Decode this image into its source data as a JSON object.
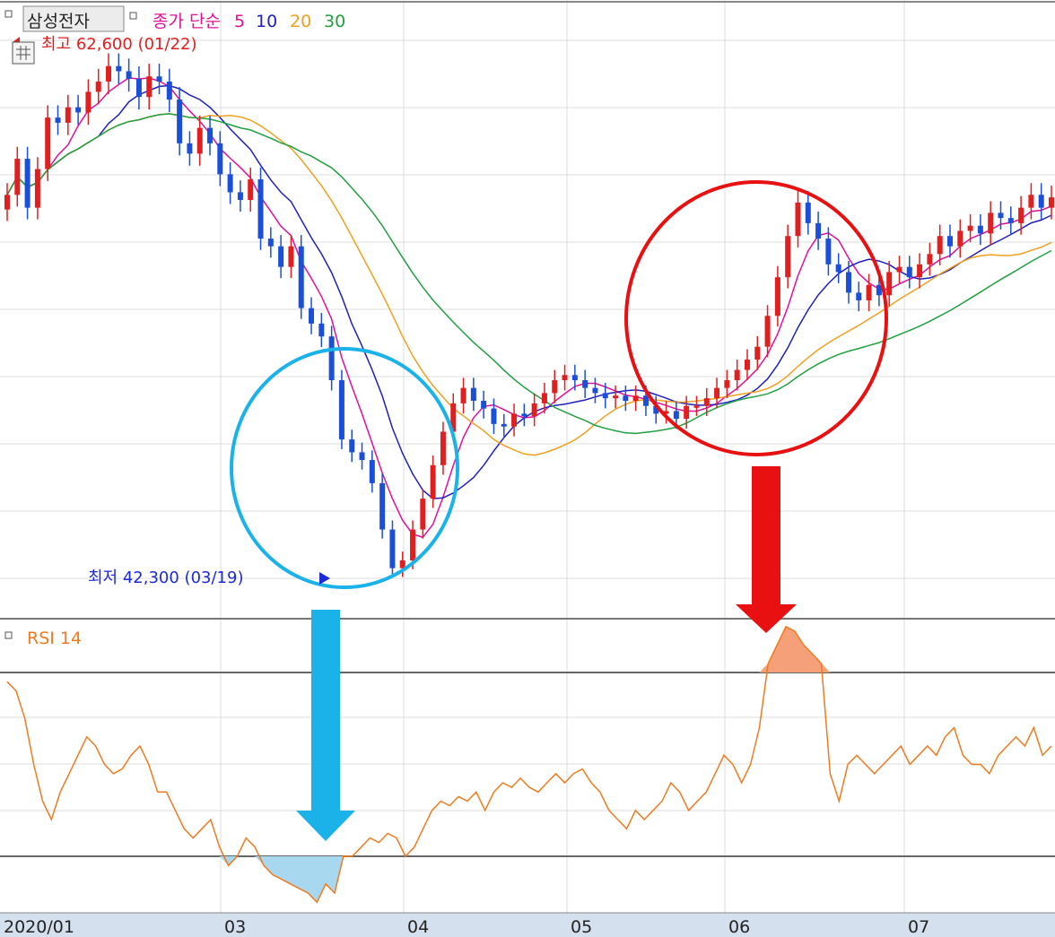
{
  "header": {
    "stock_name": "삼성전자",
    "ma_label": "종가 단순",
    "ma_periods": [
      "5",
      "10",
      "20",
      "30"
    ],
    "ma_colors": [
      "#e0109a",
      "#2020c0",
      "#f0a020",
      "#20a040"
    ],
    "high_label": "최고 62,600 (01/22)",
    "low_label": "최저 42,300 (03/19)"
  },
  "rsi": {
    "label": "RSI 14",
    "color": "#f07a20",
    "upper_band": 70,
    "lower_band": 30,
    "values": [
      68,
      66,
      60,
      50,
      42,
      38,
      44,
      48,
      52,
      56,
      54,
      50,
      48,
      49,
      52,
      54,
      50,
      44,
      44,
      40,
      36,
      34,
      36,
      38,
      32,
      28,
      30,
      34,
      32,
      28,
      26,
      25,
      24,
      23,
      22,
      20,
      24,
      22,
      30,
      30,
      32,
      34,
      33,
      35,
      34,
      30,
      32,
      36,
      40,
      42,
      41,
      43,
      42,
      44,
      40,
      44,
      46,
      45,
      47,
      45,
      44,
      46,
      48,
      46,
      48,
      49,
      46,
      44,
      40,
      38,
      36,
      40,
      38,
      40,
      42,
      46,
      44,
      40,
      42,
      44,
      48,
      52,
      50,
      46,
      50,
      58,
      72,
      76,
      80,
      79,
      76,
      74,
      72,
      48,
      42,
      50,
      52,
      50,
      48,
      50,
      52,
      54,
      50,
      52,
      54,
      52,
      56,
      58,
      52,
      50,
      50,
      48,
      52,
      54,
      56,
      54,
      58,
      52,
      54
    ]
  },
  "annotations": {
    "low_circle_color": "#1ab2e8",
    "high_circle_color": "#e81010",
    "down_arrow_blue": "#1ab2e8",
    "down_arrow_red": "#e81010"
  },
  "x_axis": {
    "labels": [
      "2020/01",
      "03",
      "04",
      "05",
      "06",
      "07"
    ]
  },
  "chart_data": {
    "type": "candlestick",
    "title": "삼성전자",
    "period": "2020/01 - 2020/07",
    "high": {
      "price": 62600,
      "date": "01/22"
    },
    "low": {
      "price": 42300,
      "date": "03/19"
    },
    "price_range": [
      42000,
      63000
    ],
    "close_series": [
      57000,
      58400,
      56500,
      58000,
      60000,
      59800,
      60400,
      60200,
      61000,
      61400,
      62000,
      61800,
      61500,
      60800,
      61600,
      61400,
      60700,
      59000,
      58600,
      59600,
      59000,
      57800,
      57100,
      56800,
      57600,
      55300,
      55000,
      54200,
      55000,
      52600,
      52000,
      51500,
      49800,
      47500,
      47000,
      46700,
      45800,
      44000,
      42500,
      42800,
      44000,
      45200,
      46500,
      47800,
      48900,
      49500,
      49000,
      48700,
      48100,
      48000,
      48500,
      48400,
      48900,
      49300,
      49800,
      50000,
      49800,
      49500,
      49300,
      49100,
      49200,
      49000,
      49200,
      48800,
      48500,
      48600,
      48300,
      48800,
      48800,
      49100,
      49500,
      49800,
      50200,
      50600,
      51100,
      52300,
      53800,
      55400,
      56700,
      55900,
      55300,
      54300,
      54000,
      53200,
      52900,
      53500,
      53100,
      54000,
      54200,
      53800,
      54300,
      54700,
      55400,
      55000,
      55600,
      55800,
      55500,
      56300,
      56100,
      55900,
      56500,
      57000,
      56500,
      56900
    ],
    "ma5_color": "#e0109a",
    "ma10_color": "#2020c0",
    "ma20_color": "#f0a020",
    "ma30_color": "#20a040",
    "up_color": "#e02020",
    "down_color": "#1c4fd8",
    "rsi_series_name": "RSI 14"
  }
}
